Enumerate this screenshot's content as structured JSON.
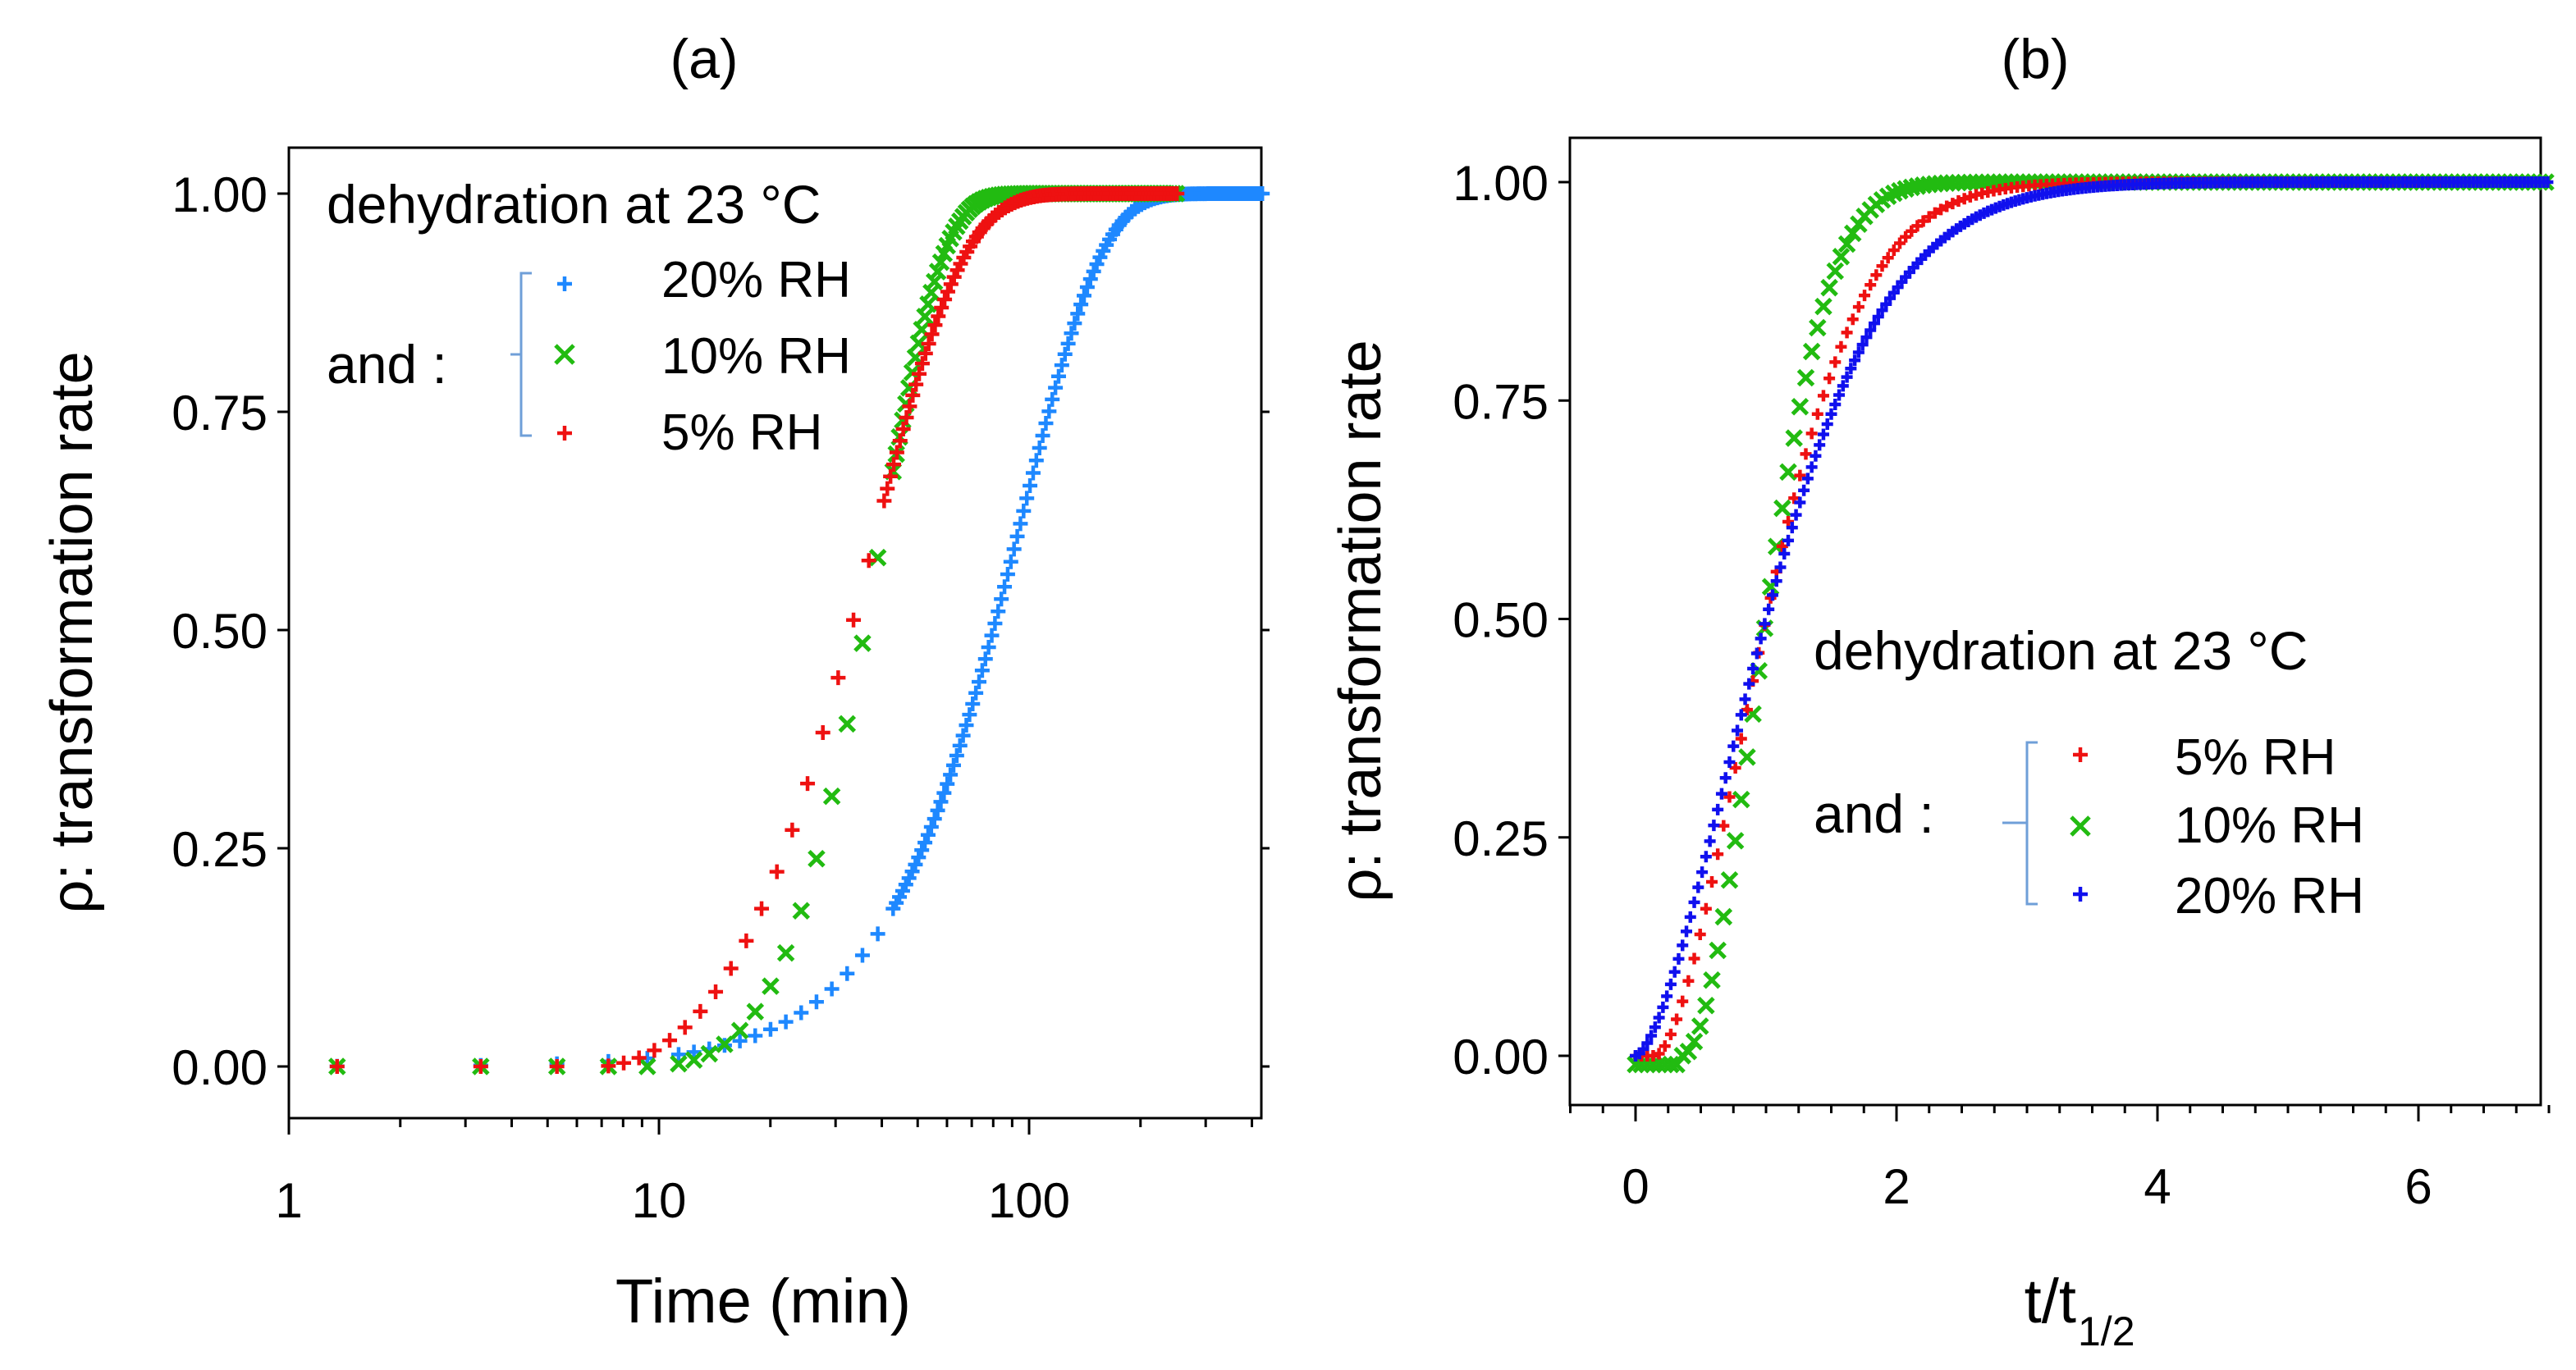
{
  "colors": {
    "rh20_a": "#1e88ff",
    "rh10": "#22bb11",
    "rh5": "#ee1111",
    "rh20_b": "#1010ee",
    "bracket": "#6f9fd8"
  },
  "chart_data": [
    {
      "type": "scatter",
      "panel_label": "(a)",
      "xlabel": "Time (min)",
      "ylabel": "ρ: transformation rate",
      "xscale": "log",
      "xlim": [
        1,
        400
      ],
      "ylim": [
        -0.05,
        1.05
      ],
      "x_ticks": [
        1,
        10,
        100
      ],
      "x_tick_labels": [
        "1",
        "10",
        "100"
      ],
      "y_ticks": [
        0,
        0.25,
        0.5,
        0.75,
        1.0
      ],
      "y_tick_labels": [
        "0.00",
        "0.25",
        "0.50",
        "0.75",
        "1.00"
      ],
      "legend": {
        "title": "dehydration at 23 °C",
        "prefix": "and :",
        "entries": [
          "20% RH",
          "10% RH",
          "5% RH"
        ]
      },
      "series": [
        {
          "name": "20% RH",
          "marker": "plus",
          "color_key": "rh20_a",
          "model": {
            "t_half": 80,
            "n": 2.0,
            "t0": 0
          },
          "x_points": [
            1.35,
            3.3,
            5.3,
            7.3,
            9.3,
            11.3
          ]
        },
        {
          "name": "10% RH",
          "marker": "x",
          "color_key": "rh10",
          "model": {
            "t_half": 36,
            "n": 2.2,
            "t0": 9
          },
          "x_points": [
            1.35,
            3.3,
            5.3,
            7.3,
            9.3,
            11.3
          ]
        },
        {
          "name": "5% RH",
          "marker": "plus",
          "color_key": "rh5",
          "model": {
            "t_half": 33,
            "n": 1.6,
            "t0": 7
          },
          "x_points": [
            1.35,
            3.3,
            5.3,
            7.3
          ]
        }
      ]
    },
    {
      "type": "scatter",
      "panel_label": "(b)",
      "xlabel_main": "t/t",
      "xlabel_sub": "1/2",
      "ylabel": "ρ: transformation rate",
      "xlim": [
        -0.5,
        7
      ],
      "ylim": [
        -0.05,
        1.05
      ],
      "x_ticks": [
        0,
        2,
        4,
        6
      ],
      "x_tick_labels": [
        "0",
        "2",
        "4",
        "6"
      ],
      "y_ticks": [
        0,
        0.25,
        0.5,
        0.75,
        1.0
      ],
      "y_tick_labels": [
        "0.00",
        "0.25",
        "0.50",
        "0.75",
        "1.00"
      ],
      "legend": {
        "title": "dehydration at 23 °C",
        "prefix": "and :",
        "entries": [
          "5% RH",
          "10% RH",
          "20% RH"
        ]
      },
      "series": [
        {
          "name": "5% RH",
          "marker": "plus",
          "color_key": "rh5",
          "model": {
            "n": 1.7,
            "s0": 0.15
          }
        },
        {
          "name": "10% RH",
          "marker": "x",
          "color_key": "rh10",
          "model": {
            "n": 2.0,
            "s0": 0.35
          }
        },
        {
          "name": "20% RH",
          "marker": "plus",
          "color_key": "rh20_b",
          "model": {
            "n": 1.6,
            "s0": 0.0
          }
        }
      ]
    }
  ]
}
